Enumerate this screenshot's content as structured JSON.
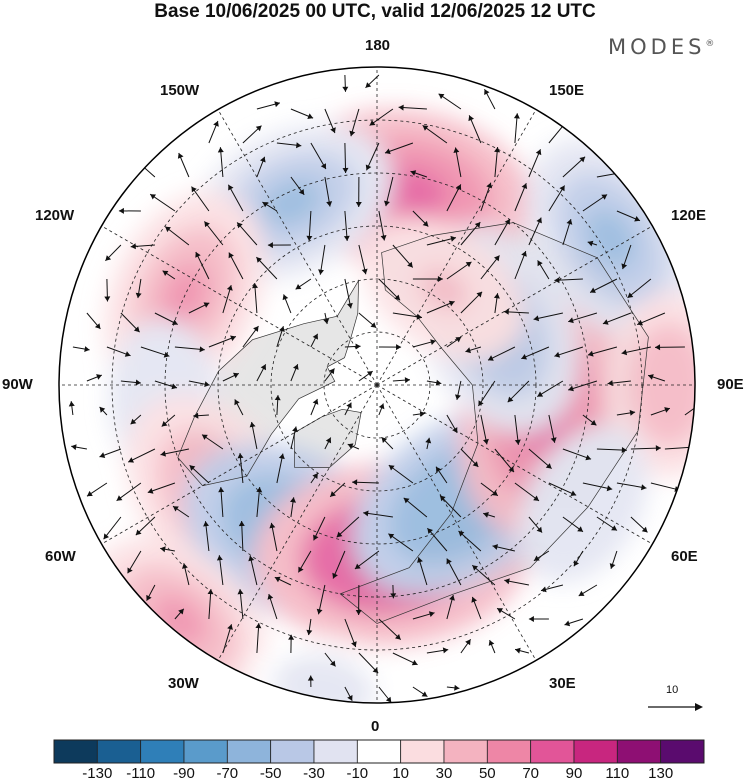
{
  "title": "Base 10/06/2025 00 UTC, valid 12/06/2025 12 UTC",
  "brand": "MODES",
  "brand_mark": "®",
  "longitude_labels": {
    "top": "180",
    "bottom": "0",
    "left": "90W",
    "right": "90E",
    "upper_left_1": "150W",
    "upper_left_2": "120W",
    "upper_right_1": "150E",
    "upper_right_2": "120E",
    "lower_left_1": "60W",
    "lower_left_2": "30W",
    "lower_right_1": "60E",
    "lower_right_2": "30E"
  },
  "reference_vector": {
    "label": "10"
  },
  "colorbar": {
    "colors": [
      "#0d3a5c",
      "#1a5f92",
      "#2f7fb8",
      "#5a9bcb",
      "#8eb4db",
      "#b9c8e6",
      "#e1e3f1",
      "#ffffff",
      "#fbdde0",
      "#f4b3c0",
      "#ee86a6",
      "#e25598",
      "#c8267f",
      "#8e0f73",
      "#5a0b6e"
    ],
    "labels": [
      "-130",
      "-110",
      "-90",
      "-70",
      "-50",
      "-30",
      "-10",
      "10",
      "30",
      "50",
      "70",
      "90",
      "110",
      "130"
    ]
  },
  "map_style": {
    "land_fill": "#e6e6e6",
    "coast_color": "#333333",
    "grid_color": "#222222",
    "arrow_color": "#111111"
  },
  "anomalies": [
    {
      "lon": 170,
      "colat": 37,
      "value": 75
    },
    {
      "lon": -155,
      "colat": 38,
      "value": -55
    },
    {
      "lon": -115,
      "colat": 40,
      "value": 60
    },
    {
      "lon": -85,
      "colat": 40,
      "value": -30
    },
    {
      "lon": -55,
      "colat": 37,
      "value": 65
    },
    {
      "lon": -28,
      "colat": 32,
      "value": -75
    },
    {
      "lon": -40,
      "colat": 58,
      "value": 50
    },
    {
      "lon": 5,
      "colat": 32,
      "value": 95
    },
    {
      "lon": 35,
      "colat": 27,
      "value": -70
    },
    {
      "lon": 80,
      "colat": 32,
      "value": 80
    },
    {
      "lon": 115,
      "colat": 25,
      "value": -60
    },
    {
      "lon": 122,
      "colat": 52,
      "value": -60
    },
    {
      "lon": 145,
      "colat": 22,
      "value": 35
    },
    {
      "lon": 90,
      "colat": 55,
      "value": 40
    },
    {
      "lon": -10,
      "colat": 58,
      "value": -20
    },
    {
      "lon": 60,
      "colat": 45,
      "value": -30
    }
  ]
}
